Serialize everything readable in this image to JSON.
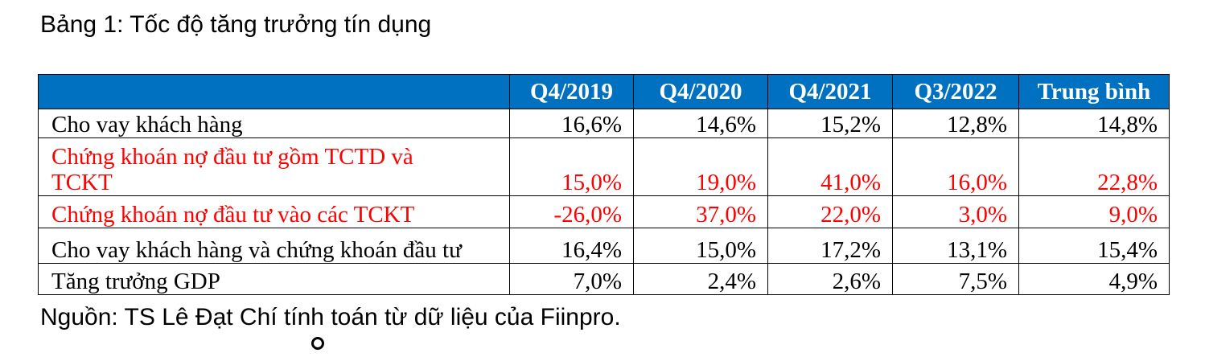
{
  "title": "Bảng 1: Tốc độ tăng trưởng tín dụng",
  "table": {
    "header": [
      "",
      "Q4/2019",
      "Q4/2020",
      "Q4/2021",
      "Q3/2022",
      "Trung bình"
    ],
    "rows": [
      {
        "label_lines": [
          "Cho vay khách hàng"
        ],
        "values": [
          "16,6%",
          "14,6%",
          "15,2%",
          "12,8%",
          "14,8%"
        ]
      },
      {
        "label_lines": [
          "Chứng khoán nợ đầu tư gồm TCTD và",
          "TCKT"
        ],
        "values": [
          "15,0%",
          "19,0%",
          "41,0%",
          "16,0%",
          "22,8%"
        ]
      },
      {
        "label_lines": [
          "Chứng khoán nợ đầu tư vào các TCKT"
        ],
        "values": [
          "-26,0%",
          "37,0%",
          "22,0%",
          "3,0%",
          "9,0%"
        ]
      },
      {
        "label_lines": [
          "Cho vay khách hàng và chứng khoán đầu tư"
        ],
        "values": [
          "16,4%",
          "15,0%",
          "17,2%",
          "13,1%",
          "15,4%"
        ]
      },
      {
        "label_lines": [
          "Tăng trưởng GDP"
        ],
        "values": [
          "7,0%",
          "2,4%",
          "2,6%",
          "7,5%",
          "4,9%"
        ]
      }
    ]
  },
  "source": "Nguồn: TS Lê Đạt Chí tính toán từ dữ liệu của Fiinpro.",
  "colors": {
    "header_bg": "#0070c0",
    "header_text": "#ffffff",
    "highlight_text": "#ff0000"
  }
}
